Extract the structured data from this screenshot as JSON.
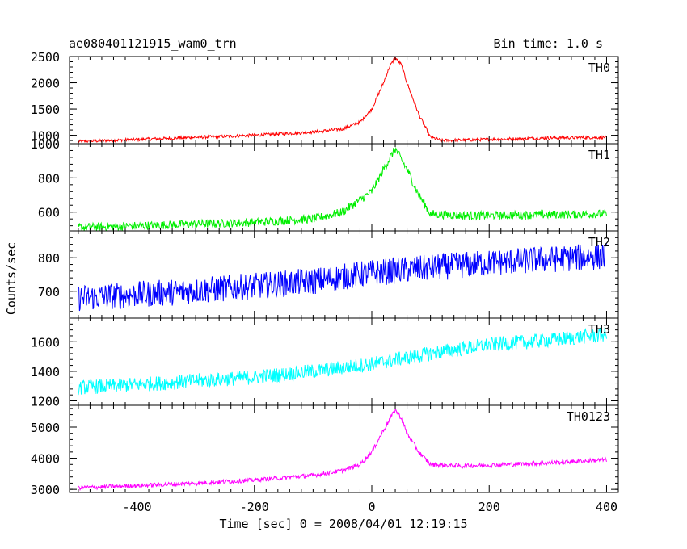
{
  "chart_data": {
    "type": "line",
    "title": "ae080401121915_wam0_trn",
    "subtitle": "Bin time: 1.0 s",
    "xlabel": "Time [sec] 0 = 2008/04/01 12:19:15",
    "ylabel": "Counts/sec",
    "xlim": [
      -515,
      420
    ],
    "xticks": [
      -400,
      -200,
      0,
      200,
      400
    ],
    "grid": false,
    "panels": [
      {
        "name": "TH0",
        "color": "#ff0000",
        "ylim": [
          840,
          2500
        ],
        "yticks": [
          1000,
          1500,
          2000,
          2500
        ],
        "x": [
          -500,
          -400,
          -300,
          -200,
          -100,
          -50,
          -20,
          0,
          20,
          30,
          40,
          50,
          60,
          80,
          100,
          120,
          200,
          300,
          400
        ],
        "y": [
          880,
          920,
          960,
          1000,
          1060,
          1120,
          1250,
          1500,
          2000,
          2300,
          2480,
          2350,
          2000,
          1400,
          960,
          900,
          920,
          950,
          960
        ],
        "noise": 30
      },
      {
        "name": "TH1",
        "color": "#00ee00",
        "ylim": [
          490,
          1000
        ],
        "yticks": [
          600,
          800,
          1000
        ],
        "x": [
          -500,
          -400,
          -300,
          -200,
          -100,
          -50,
          0,
          20,
          40,
          60,
          80,
          100,
          150,
          200,
          300,
          400
        ],
        "y": [
          510,
          520,
          530,
          540,
          560,
          600,
          720,
          850,
          970,
          850,
          700,
          590,
          580,
          580,
          585,
          590
        ],
        "noise": 25
      },
      {
        "name": "TH2",
        "color": "#0000ff",
        "ylim": [
          620,
          880
        ],
        "yticks": [
          700,
          800
        ],
        "x": [
          -500,
          -400,
          -300,
          -200,
          -100,
          0,
          100,
          200,
          300,
          400
        ],
        "y": [
          680,
          690,
          702,
          715,
          730,
          755,
          770,
          785,
          795,
          805
        ],
        "noise": 40
      },
      {
        "name": "TH3",
        "color": "#00ffff",
        "ylim": [
          1170,
          1760
        ],
        "yticks": [
          1200,
          1400,
          1600
        ],
        "x": [
          -500,
          -400,
          -300,
          -200,
          -100,
          0,
          100,
          200,
          300,
          400
        ],
        "y": [
          1290,
          1310,
          1335,
          1360,
          1400,
          1450,
          1520,
          1580,
          1610,
          1650
        ],
        "noise": 50
      },
      {
        "name": "TH0123",
        "color": "#ff00ff",
        "ylim": [
          2900,
          5700
        ],
        "yticks": [
          3000,
          4000,
          5000
        ],
        "x": [
          -500,
          -400,
          -300,
          -200,
          -100,
          -50,
          -20,
          0,
          20,
          35,
          40,
          50,
          60,
          80,
          100,
          150,
          200,
          300,
          400
        ],
        "y": [
          3050,
          3120,
          3200,
          3300,
          3450,
          3600,
          3800,
          4200,
          4900,
          5400,
          5550,
          5300,
          4800,
          4200,
          3800,
          3750,
          3780,
          3850,
          3950
        ],
        "noise": 70
      }
    ]
  }
}
